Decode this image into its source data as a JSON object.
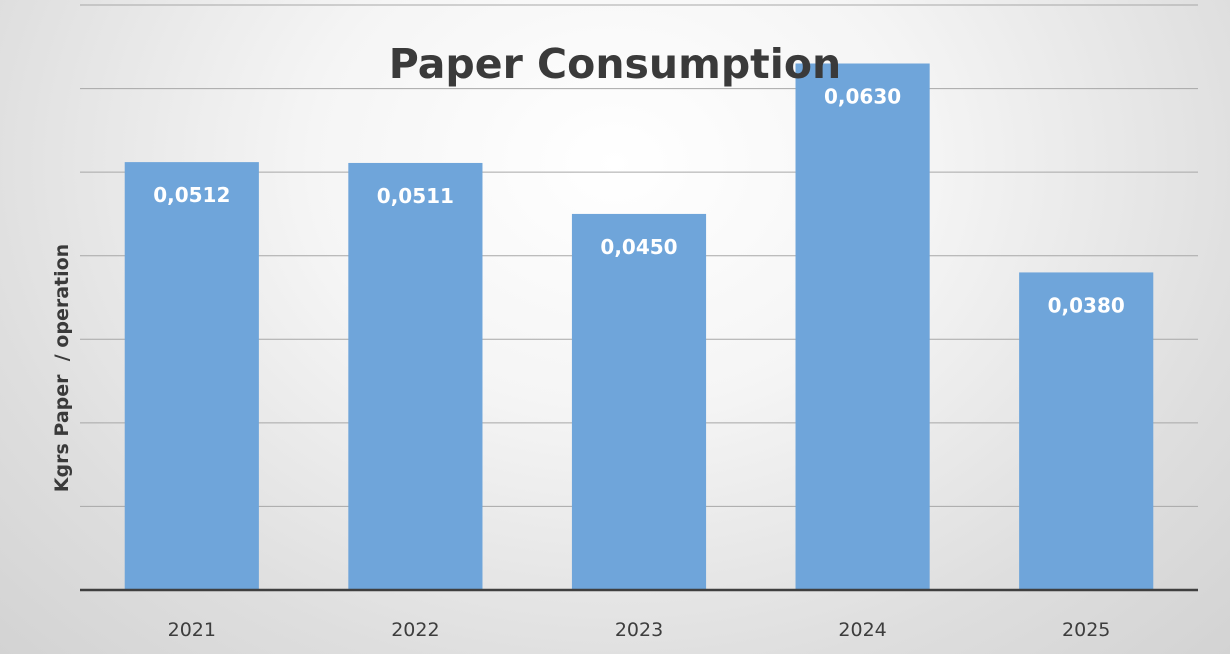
{
  "chart_data": {
    "type": "bar",
    "title": "Paper Consumption",
    "xlabel": "",
    "ylabel": "Kgrs Paper  / operation",
    "categories": [
      "2021",
      "2022",
      "2023",
      "2024",
      "2025"
    ],
    "values": [
      0.0512,
      0.0511,
      0.045,
      0.063,
      0.038
    ],
    "value_labels": [
      "0,0512",
      "0,0511",
      "0,0450",
      "0,0630",
      "0,0380"
    ],
    "ylim": [
      0,
      0.07
    ],
    "grid": true,
    "legend": "none",
    "colors": {
      "bar": "#6fa5da",
      "value_label": "#ffffff",
      "text": "#3a3a3a",
      "gridline": "#a7a7a7"
    }
  }
}
